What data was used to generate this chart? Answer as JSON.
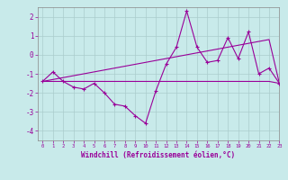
{
  "x_data": [
    0,
    1,
    2,
    3,
    4,
    5,
    6,
    7,
    8,
    9,
    10,
    11,
    12,
    13,
    14,
    15,
    16,
    17,
    18,
    19,
    20,
    21,
    22,
    23
  ],
  "y_jagged": [
    -1.4,
    -0.9,
    -1.4,
    -1.7,
    -1.8,
    -1.5,
    -2.0,
    -2.6,
    -2.7,
    -3.2,
    -3.6,
    -1.9,
    -0.5,
    0.4,
    2.3,
    0.4,
    -0.4,
    -0.3,
    0.9,
    -0.2,
    1.2,
    -1.0,
    -0.7,
    -1.5
  ],
  "y_slope": [
    -1.4,
    -1.3,
    -1.2,
    -1.1,
    -1.0,
    -0.9,
    -0.8,
    -0.7,
    -0.6,
    -0.5,
    -0.4,
    -0.3,
    -0.2,
    -0.1,
    0.0,
    0.1,
    0.2,
    0.3,
    0.4,
    0.5,
    0.6,
    0.7,
    0.8,
    -1.5
  ],
  "y_flat": [
    -1.4,
    -1.4,
    -1.4,
    -1.4,
    -1.4,
    -1.4,
    -1.4,
    -1.4,
    -1.4,
    -1.4,
    -1.4,
    -1.4,
    -1.4,
    -1.4,
    -1.4,
    -1.4,
    -1.4,
    -1.4,
    -1.4,
    -1.4,
    -1.4,
    -1.4,
    -1.4,
    -1.5
  ],
  "bg_color": "#c8eaea",
  "line_color": "#990099",
  "grid_color": "#aacccc",
  "xlabel": "Windchill (Refroidissement éolien,°C)",
  "ylim": [
    -4.5,
    2.5
  ],
  "xlim": [
    -0.5,
    23
  ],
  "yticks": [
    -4,
    -3,
    -2,
    -1,
    0,
    1,
    2
  ],
  "xticks": [
    0,
    1,
    2,
    3,
    4,
    5,
    6,
    7,
    8,
    9,
    10,
    11,
    12,
    13,
    14,
    15,
    16,
    17,
    18,
    19,
    20,
    21,
    22,
    23
  ]
}
